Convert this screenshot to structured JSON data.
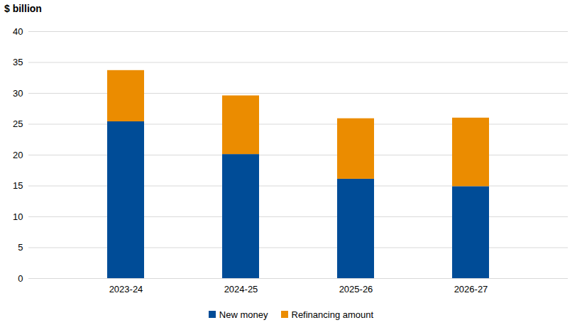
{
  "chart_data": {
    "type": "bar",
    "stacked": true,
    "y_label": "$ billion",
    "categories": [
      "2023-24",
      "2024-25",
      "2025-26",
      "2026-27"
    ],
    "series": [
      {
        "name": "New money",
        "color": "#004c97",
        "values": [
          25.4,
          20.1,
          16.1,
          14.9
        ]
      },
      {
        "name": "Refinancing amount",
        "color": "#eb8c00",
        "values": [
          8.3,
          9.5,
          9.8,
          11.1
        ]
      }
    ],
    "ylim": [
      0,
      40
    ],
    "yticks": [
      0,
      5,
      10,
      15,
      20,
      25,
      30,
      35,
      40
    ],
    "grid": true,
    "legend": "bottom"
  }
}
